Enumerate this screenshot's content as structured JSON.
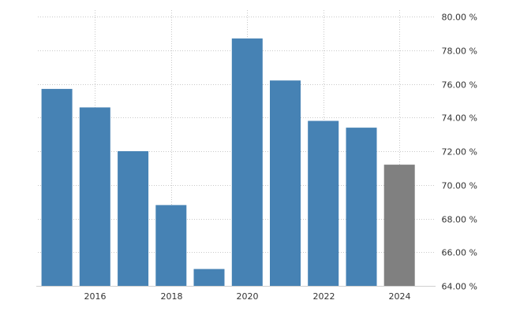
{
  "chart_data": {
    "type": "bar",
    "title": "",
    "xlabel": "",
    "ylabel": "",
    "x": [
      2015,
      2016,
      2017,
      2018,
      2019,
      2020,
      2021,
      2022,
      2023,
      2024
    ],
    "values": [
      75.7,
      74.6,
      72.0,
      68.8,
      65.0,
      78.7,
      76.2,
      73.8,
      73.4,
      71.2
    ],
    "ylim": [
      64,
      80
    ],
    "yticks": [
      64,
      66,
      68,
      70,
      72,
      74,
      76,
      78,
      80
    ],
    "ytick_labels": [
      "64.00 %",
      "66.00 %",
      "68.00 %",
      "70.00 %",
      "72.00 %",
      "74.00 %",
      "76.00 %",
      "78.00 %",
      "80.00 %"
    ],
    "xticks": [
      2016,
      2018,
      2020,
      2022,
      2024
    ],
    "xtick_labels": [
      "2016",
      "2018",
      "2020",
      "2022",
      "2024"
    ],
    "y_axis_position": "right",
    "grid": true,
    "legend": "none",
    "colors": {
      "bar": "#4682b4",
      "bar_forecast": "#808080",
      "forecast_from": 2024
    }
  }
}
